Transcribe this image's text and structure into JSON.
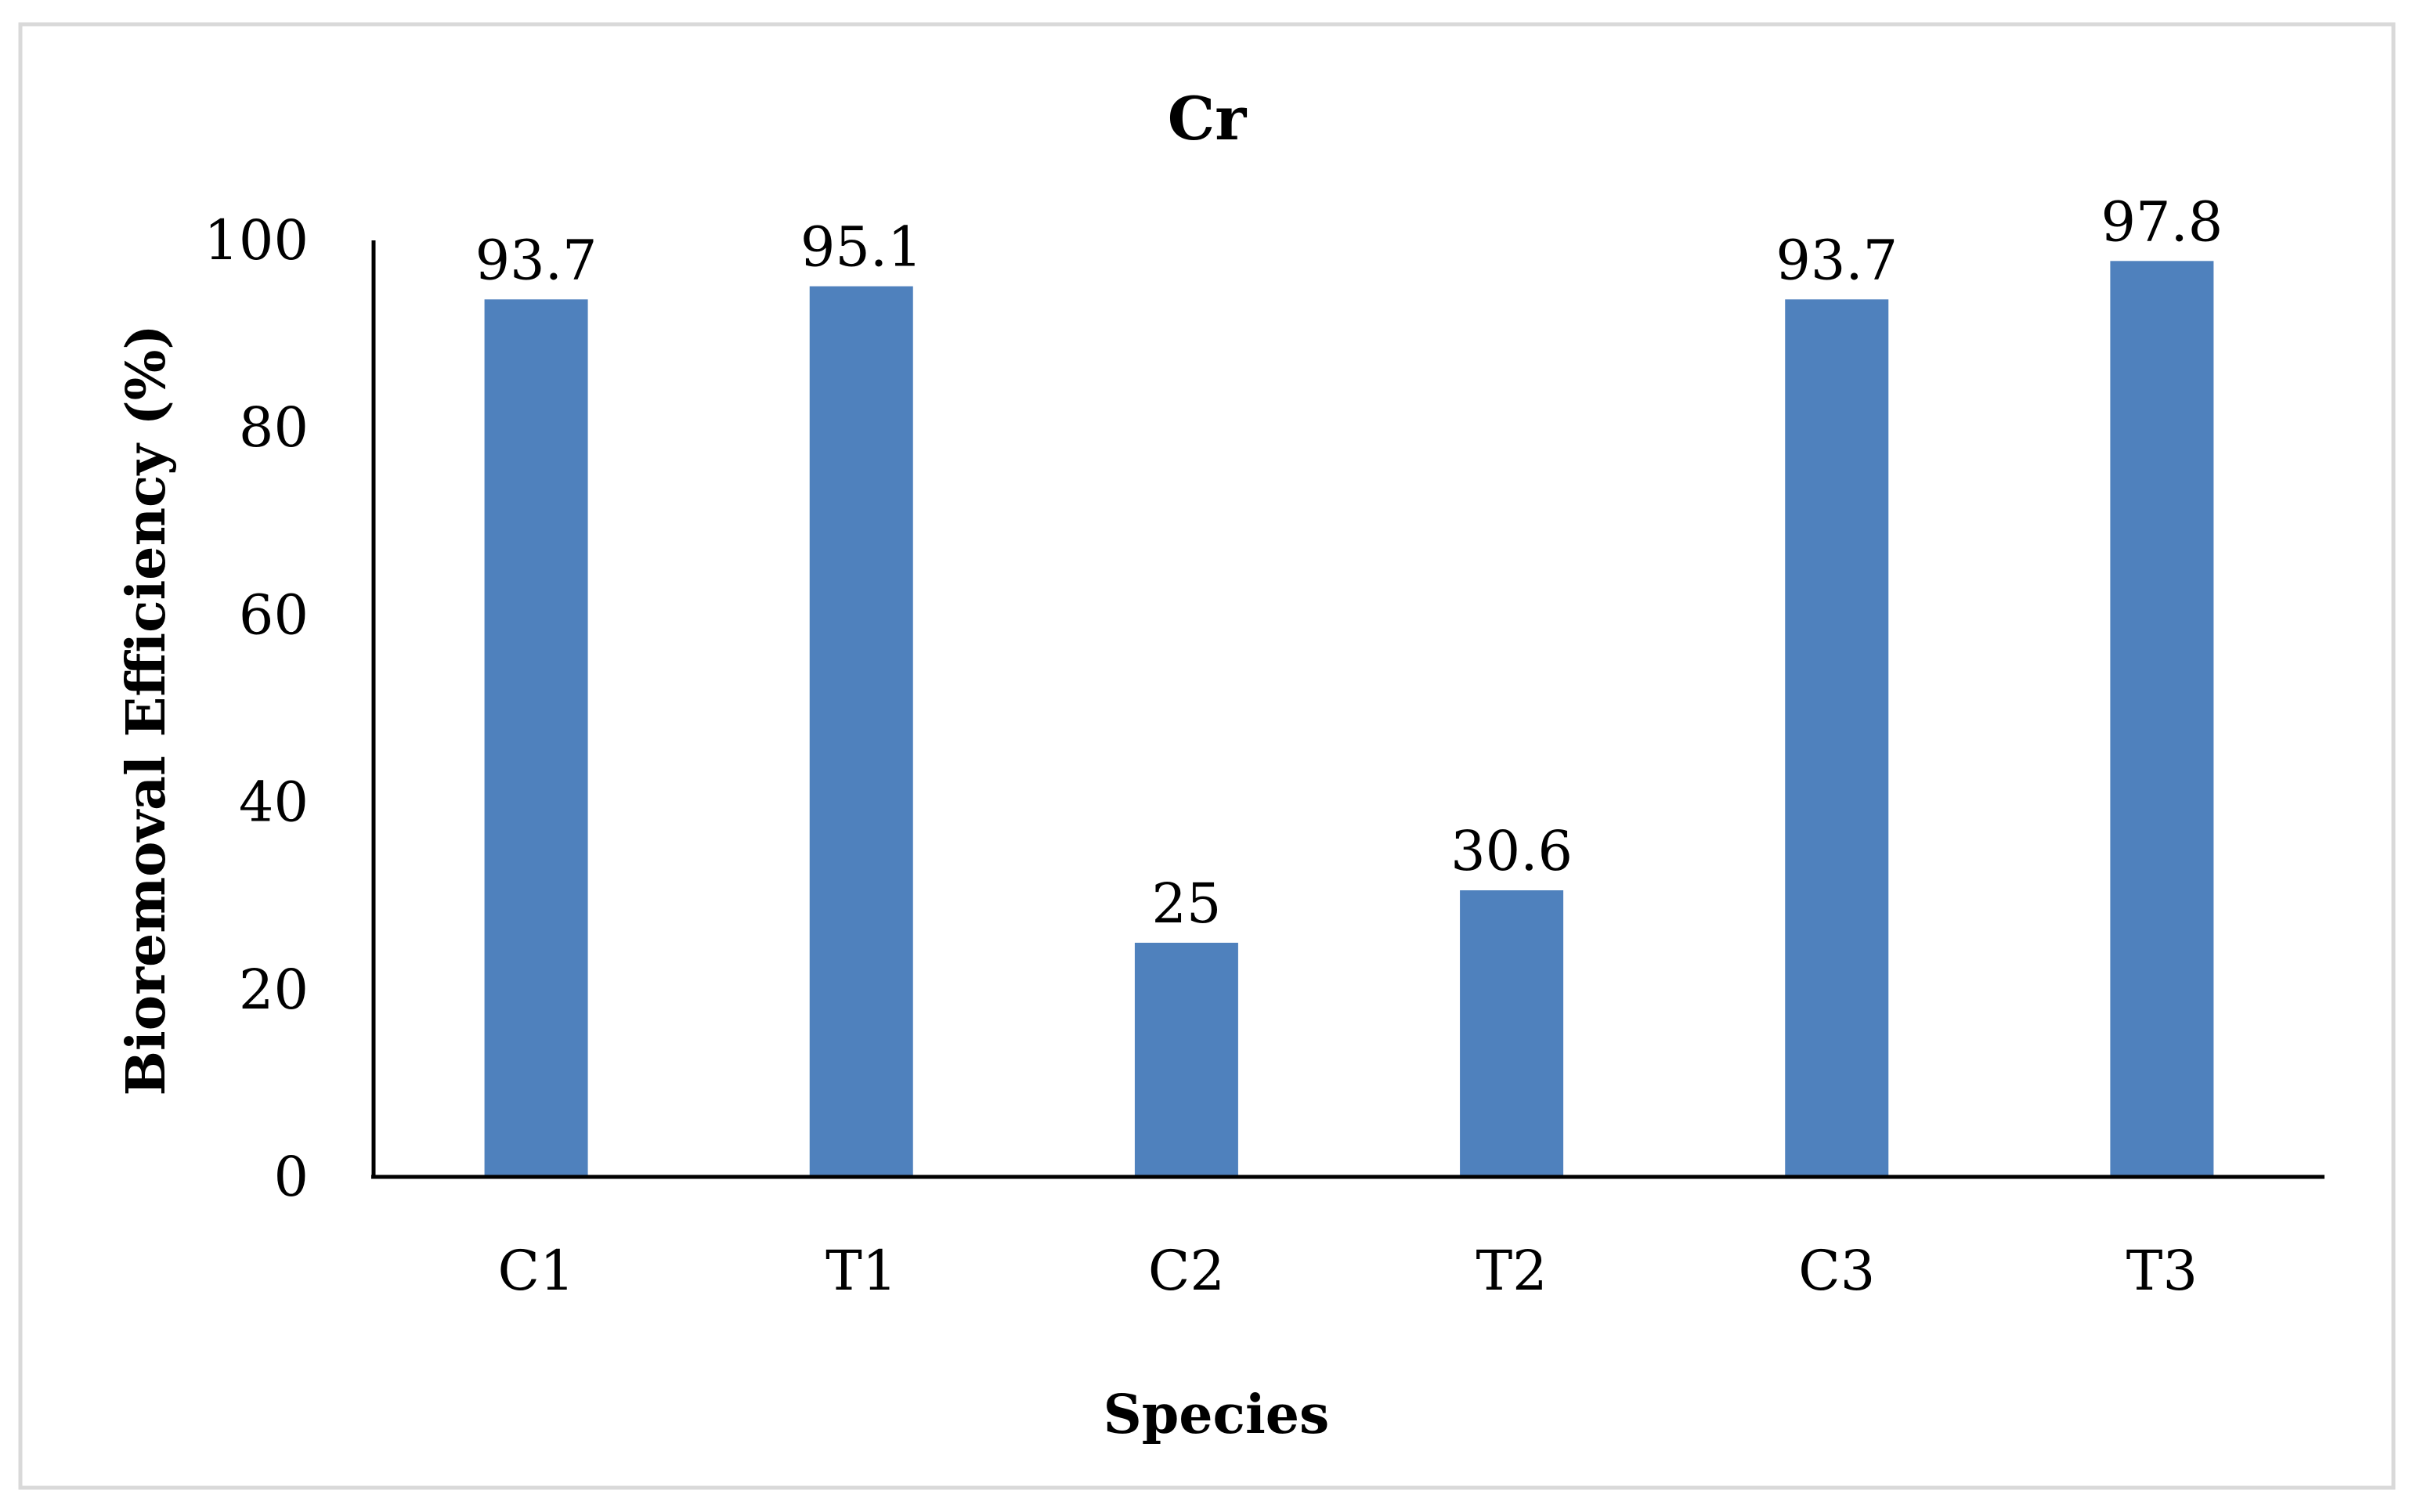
{
  "chart_data": {
    "type": "bar",
    "title": "Cr",
    "xlabel": "Species",
    "ylabel": "Bioremoval Efficiency (%)",
    "categories": [
      "C1",
      "T1",
      "C2",
      "T2",
      "C3",
      "T3"
    ],
    "values": [
      93.7,
      95.1,
      25,
      30.6,
      93.7,
      97.8
    ],
    "data_labels": [
      "93.7",
      "95.1",
      "25",
      "30.6",
      "93.7",
      "97.8"
    ],
    "ylim": [
      0,
      100
    ],
    "yticks": [
      0,
      20,
      40,
      60,
      80,
      100
    ],
    "ytick_labels": [
      "0",
      "20",
      "40",
      "60",
      "80",
      "100"
    ],
    "grid": false,
    "legend": "none",
    "bar_color": "#4F81BD",
    "border_color": "#D9D9D9"
  }
}
